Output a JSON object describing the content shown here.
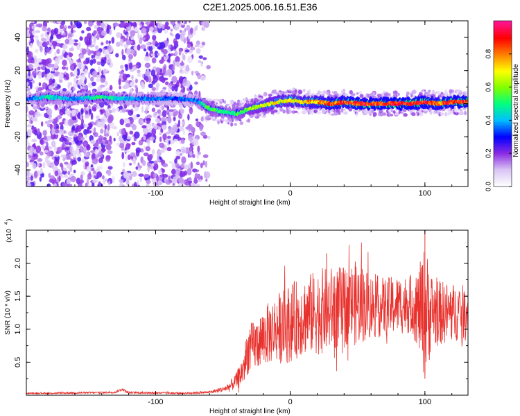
{
  "figure_title": "C2E1.2025.006.16.51.E36",
  "chart_data": [
    {
      "type": "heatmap",
      "title": "C2E1.2025.006.16.51.E36",
      "xlabel": "Height of straight line (km)",
      "ylabel": "Frequency (Hz)",
      "xlim": [
        -196,
        132
      ],
      "ylim": [
        -50,
        50
      ],
      "x_ticks": [
        -100,
        0,
        100
      ],
      "x_tick_labels": [
        "-100",
        "0",
        "100"
      ],
      "y_ticks": [
        -40,
        -20,
        0,
        20,
        40
      ],
      "y_tick_labels": [
        "-40",
        "-20",
        "0",
        "20",
        "40"
      ],
      "grid": false,
      "colorbar": {
        "label": "Normalized spectral amplitude",
        "range": [
          0,
          1
        ],
        "ticks": [
          0.0,
          0.2,
          0.4,
          0.6,
          0.8
        ],
        "tick_labels": [
          "0.0",
          "0.2",
          "0.4",
          "0.6",
          "0.8"
        ],
        "colormap": [
          "#ffffff",
          "#d9c4f5",
          "#8a2be2",
          "#0000ff",
          "#00bfff",
          "#00ff80",
          "#80ff00",
          "#ffff00",
          "#ff8000",
          "#ff0000",
          "#ff1493"
        ]
      },
      "ridge": {
        "x": [
          -196,
          -180,
          -160,
          -140,
          -125,
          -115,
          -100,
          -85,
          -70,
          -60,
          -50,
          -40,
          -30,
          -20,
          -10,
          0,
          10,
          20,
          30,
          40,
          50,
          60,
          70,
          80,
          90,
          100,
          110,
          120,
          132
        ],
        "frequency": [
          3,
          4,
          3,
          4,
          3,
          3,
          3,
          3,
          2,
          -3,
          -5,
          -6,
          -3,
          -1,
          1,
          2,
          1,
          1,
          0,
          1,
          0,
          0,
          0,
          0,
          0,
          1,
          0,
          1,
          1
        ],
        "amplitude": [
          0.35,
          0.5,
          0.4,
          0.55,
          0.45,
          0.4,
          0.4,
          0.35,
          0.4,
          0.6,
          0.5,
          0.55,
          0.65,
          0.7,
          0.75,
          0.75,
          0.8,
          0.85,
          0.9,
          0.9,
          0.95,
          0.95,
          0.95,
          1.0,
          0.95,
          0.95,
          0.9,
          0.95,
          0.95
        ]
      },
      "noise_band": {
        "x_range": [
          -196,
          -60
        ],
        "frequency_range": [
          -50,
          50
        ],
        "amplitude_range": [
          0.05,
          0.25
        ]
      }
    },
    {
      "type": "line",
      "xlabel": "Height of straight line (km)",
      "ylabel": "SNR (10 * v/v)",
      "multiplier_label": "(x10",
      "multiplier_exponent": "4",
      "color": "#e8322e",
      "xlim": [
        -196,
        132
      ],
      "ylim": [
        0,
        25000
      ],
      "x_ticks": [
        -100,
        0,
        100
      ],
      "x_tick_labels": [
        "-100",
        "0",
        "100"
      ],
      "y_ticks": [
        5000,
        10000,
        15000,
        20000
      ],
      "y_tick_labels": [
        "0.5",
        "1.0",
        "1.5",
        "2.0"
      ],
      "grid": false,
      "x": [
        -196,
        -180,
        -160,
        -140,
        -130,
        -125,
        -120,
        -100,
        -80,
        -60,
        -50,
        -45,
        -40,
        -35,
        -32,
        -30,
        -25,
        -20,
        -15,
        -10,
        -5,
        0,
        10,
        20,
        30,
        40,
        50,
        60,
        70,
        80,
        90,
        95,
        100,
        105,
        110,
        120,
        132
      ],
      "y": [
        300,
        300,
        350,
        400,
        450,
        900,
        400,
        350,
        300,
        450,
        900,
        1300,
        2200,
        3800,
        6500,
        7000,
        7800,
        8800,
        9500,
        10200,
        10400,
        11000,
        12000,
        12600,
        13000,
        13500,
        14000,
        13500,
        13300,
        13700,
        13800,
        13000,
        12600,
        12700,
        12500,
        12500,
        12600
      ],
      "spread": [
        100,
        100,
        150,
        150,
        150,
        200,
        150,
        150,
        150,
        200,
        400,
        800,
        1200,
        2500,
        3500,
        3800,
        4000,
        4500,
        4800,
        5200,
        5800,
        6000,
        6000,
        6500,
        6500,
        6000,
        6500,
        5000,
        4500,
        4500,
        4500,
        6000,
        10500,
        6000,
        5000,
        4500,
        4000
      ],
      "peaks": [
        {
          "x": 100,
          "y": 24800
        },
        {
          "x": 27,
          "y": 21500
        },
        {
          "x": 100,
          "y": 2500
        }
      ]
    }
  ]
}
